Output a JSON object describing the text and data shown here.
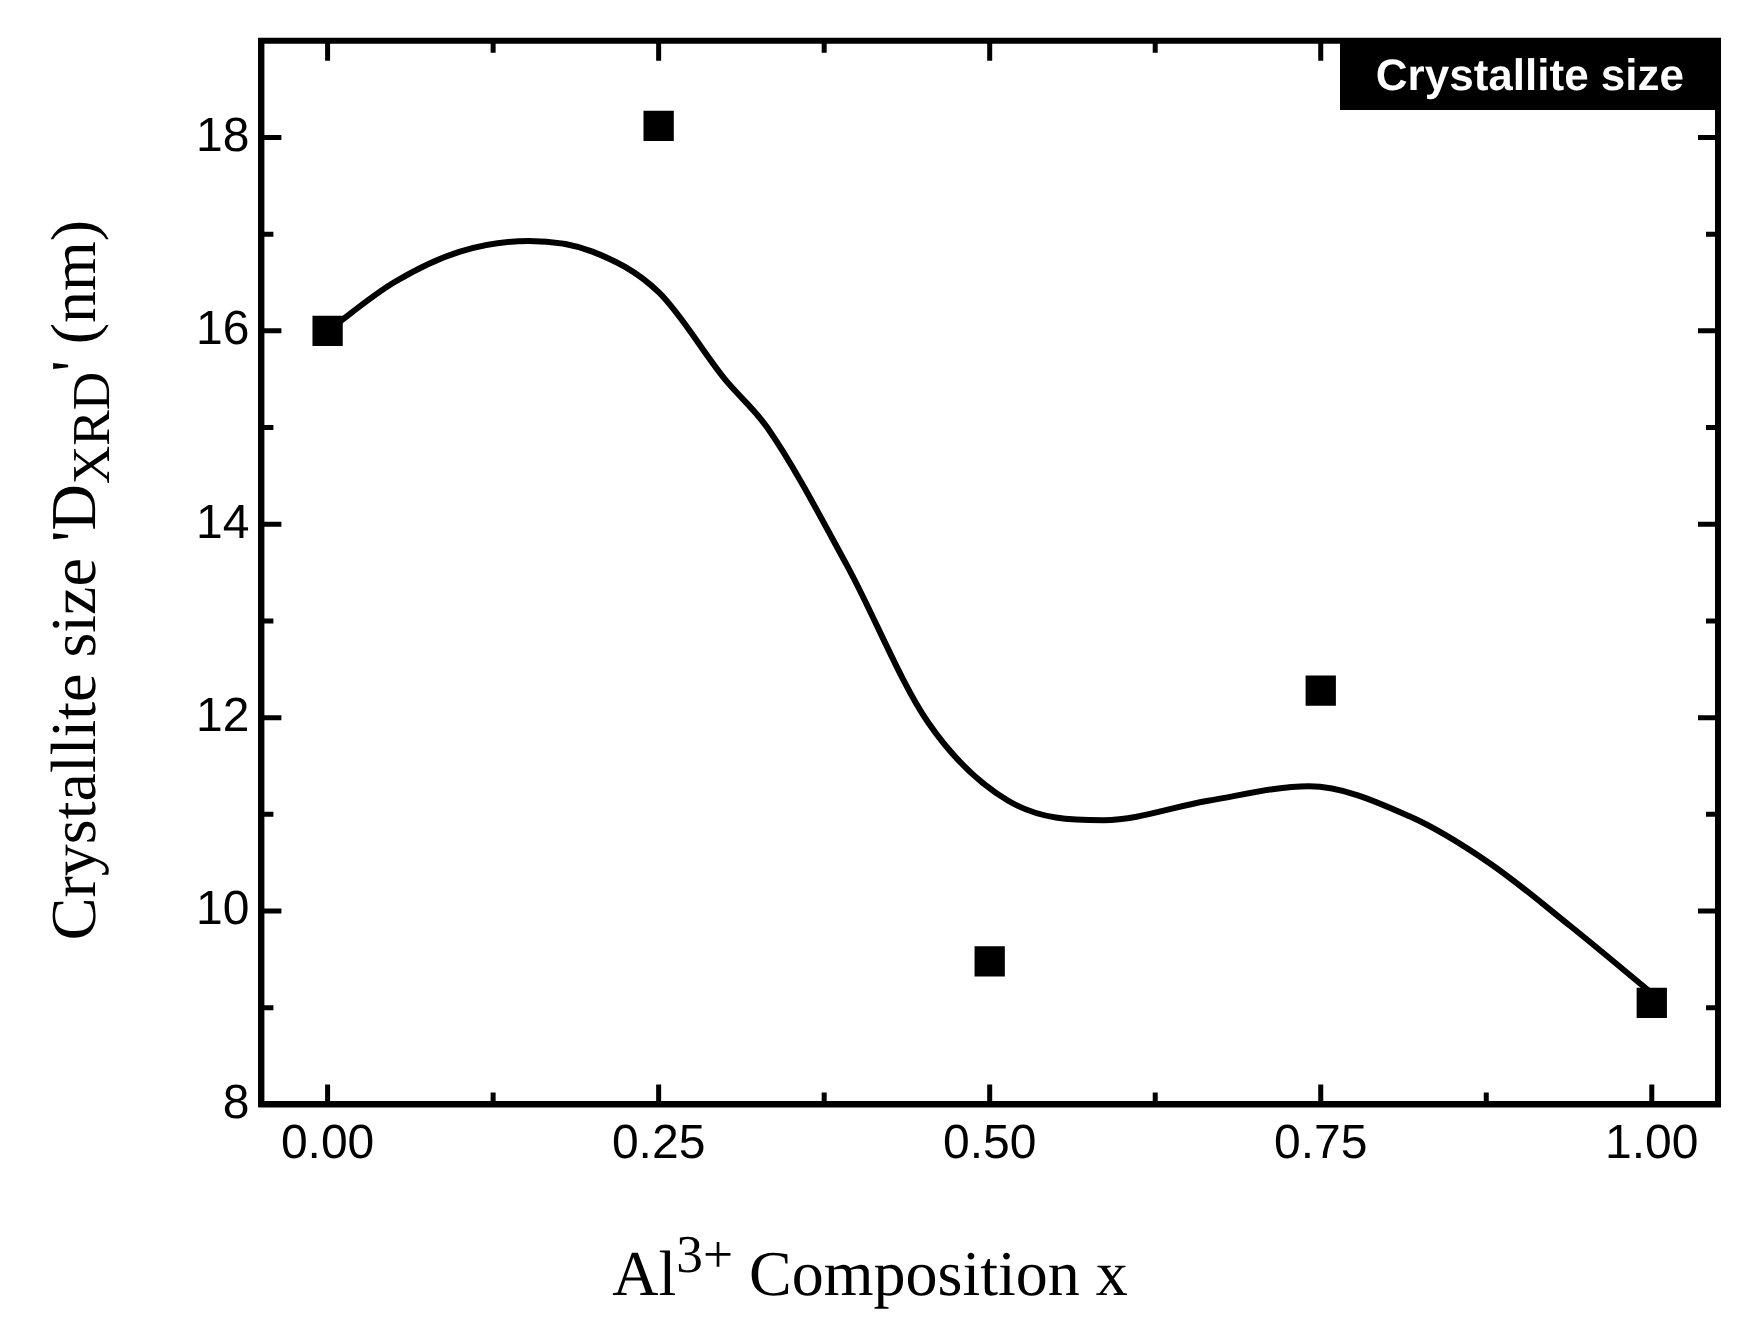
{
  "chart_data": {
    "type": "scatter",
    "xlabel": "Al$^{3+}$  Composition x",
    "ylabel": "Crystallite size 'D$_{XRD}$' (nm)",
    "annotations": [
      "Crystallite size"
    ],
    "xlim": [
      -0.05,
      1.05
    ],
    "ylim": [
      8,
      19
    ],
    "xticks": [
      {
        "value": 0,
        "label": "0.00"
      },
      {
        "value": 0.125,
        "label": null
      },
      {
        "value": 0.25,
        "label": "0.25"
      },
      {
        "value": 0.375,
        "label": null
      },
      {
        "value": 0.5,
        "label": "0.50"
      },
      {
        "value": 0.625,
        "label": null
      },
      {
        "value": 0.75,
        "label": "0.75"
      },
      {
        "value": 0.875,
        "label": null
      },
      {
        "value": 1,
        "label": "1.00"
      }
    ],
    "yticks": [
      8,
      {
        "value": 9,
        "label": null
      },
      10,
      {
        "value": 11,
        "label": null
      },
      12,
      {
        "value": 13,
        "label": null
      },
      14,
      {
        "value": 15,
        "label": null
      },
      16,
      {
        "value": 17,
        "label": null
      },
      18
    ],
    "grid": false,
    "legend": false,
    "series": [
      {
        "marker": "square",
        "color": "#000000",
        "x": [
          0,
          0.25,
          0.5,
          0.75,
          1
        ],
        "values": [
          16.0,
          18.12,
          9.48,
          12.28,
          9.05
        ]
      },
      {
        "type": "line",
        "marker": "none",
        "line_style": "solid",
        "color": "#000000",
        "x": [
          0,
          0.05,
          0.1,
          0.152,
          0.2,
          0.25,
          0.3,
          0.332,
          0.392,
          0.453,
          0.514,
          0.586,
          0.665,
          0.741,
          0.817,
          0.877,
          0.938,
          1
        ],
        "values": [
          16.0,
          16.5,
          16.82,
          16.93,
          16.82,
          16.4,
          15.5,
          15.0,
          13.58,
          11.96,
          11.14,
          10.94,
          11.14,
          11.29,
          10.98,
          10.5,
          9.85,
          9.15
        ]
      }
    ]
  }
}
